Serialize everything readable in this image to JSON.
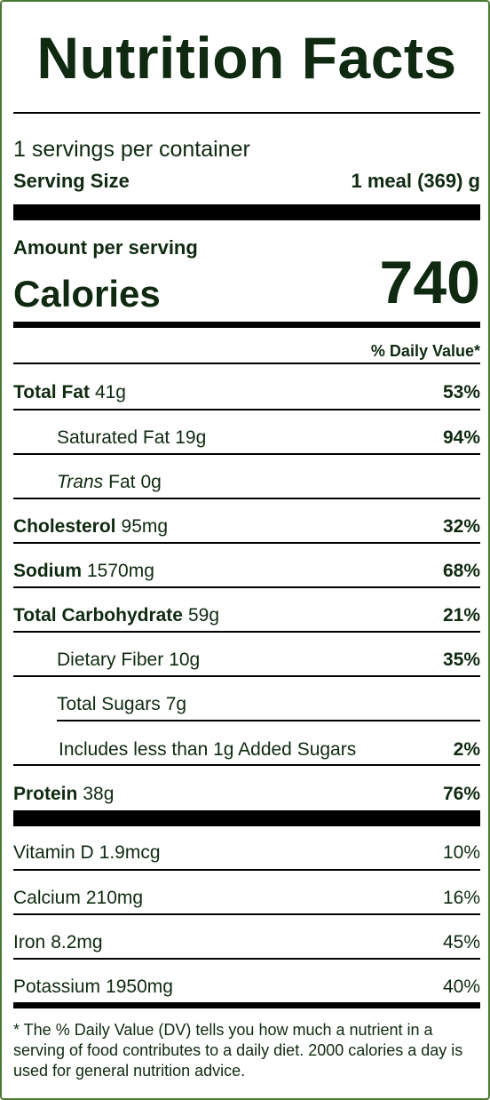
{
  "title": "Nutrition Facts",
  "servings_per_container": "1 servings per container",
  "serving_size": {
    "label": "Serving Size",
    "value": "1 meal (369) g"
  },
  "amount_per_serving": "Amount per serving",
  "calories": {
    "label": "Calories",
    "value": "740"
  },
  "daily_value_header": "% Daily Value*",
  "nutrients": [
    {
      "name": "Total Fat",
      "amount": "41g",
      "dv": "53%"
    },
    {
      "name": "Saturated Fat",
      "amount": "19g",
      "dv": "94%"
    },
    {
      "name_italic": "Trans",
      "name": "Fat",
      "amount": "0g",
      "dv": ""
    },
    {
      "name": "Cholesterol",
      "amount": "95mg",
      "dv": "32%"
    },
    {
      "name": "Sodium",
      "amount": "1570mg",
      "dv": "68%"
    },
    {
      "name": "Total Carbohydrate",
      "amount": "59g",
      "dv": "21%"
    },
    {
      "name": "Dietary Fiber",
      "amount": "10g",
      "dv": "35%"
    },
    {
      "name": "Total Sugars",
      "amount": "7g",
      "dv": ""
    },
    {
      "name": "Includes",
      "amount": "less than 1g Added Sugars",
      "dv": "2%"
    },
    {
      "name": "Protein",
      "amount": "38g",
      "dv": "76%"
    }
  ],
  "vitamins": [
    {
      "name": "Vitamin D",
      "amount": "1.9mcg",
      "dv": "10%"
    },
    {
      "name": "Calcium",
      "amount": "210mg",
      "dv": "16%"
    },
    {
      "name": "Iron",
      "amount": "8.2mg",
      "dv": "45%"
    },
    {
      "name": "Potassium",
      "amount": "1950mg",
      "dv": "40%"
    }
  ],
  "footnote": "* The % Daily Value (DV) tells you how much a nutrient in a serving of food contributes to a daily diet. 2000 calories a day is used for general nutrition advice.",
  "colors": {
    "text": "#0f2a10",
    "border": "#4a7a32",
    "rule": "#000000"
  }
}
